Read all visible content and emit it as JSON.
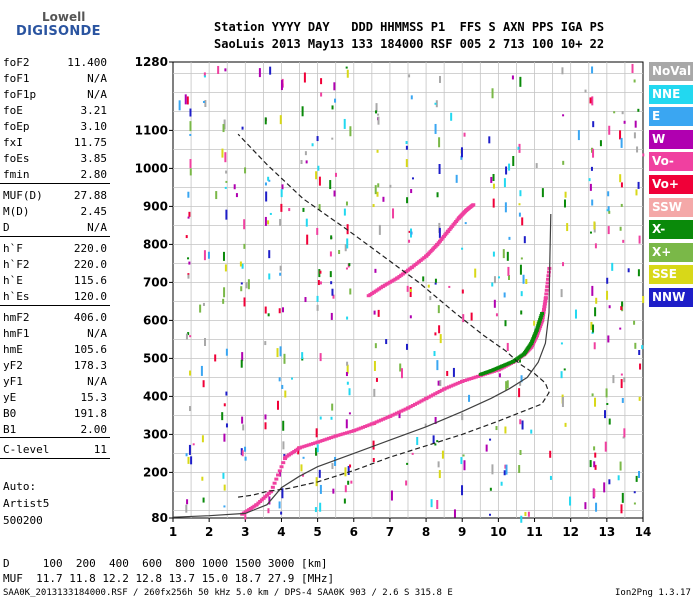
{
  "logo": {
    "line1": "Lowell",
    "line2": "DIGISONDE"
  },
  "header": {
    "row1": "Station YYYY DAY   DDD HHMMSS P1  FFS S AXN PPS IGA PS",
    "row2": "SaoLuis 2013 May13 133 184000 RSF 005 2 713 100 10+ 22"
  },
  "params": [
    {
      "key": "foF2",
      "value": "11.400"
    },
    {
      "key": "foF1",
      "value": "N/A"
    },
    {
      "key": "foF1p",
      "value": "N/A"
    },
    {
      "key": "foE",
      "value": "3.21"
    },
    {
      "key": "foEp",
      "value": "3.10"
    },
    {
      "key": "fxI",
      "value": "11.75"
    },
    {
      "key": "foEs",
      "value": "3.85"
    },
    {
      "key": "fmin",
      "value": "2.80"
    },
    {
      "key": "MUF(D)",
      "value": "27.88"
    },
    {
      "key": "M(D)",
      "value": "2.45"
    },
    {
      "key": "D",
      "value": "N/A"
    },
    {
      "key": "h`F",
      "value": "220.0"
    },
    {
      "key": "h`F2",
      "value": "220.0"
    },
    {
      "key": "h`E",
      "value": "115.6"
    },
    {
      "key": "h`Es",
      "value": "120.0"
    },
    {
      "key": "hmF2",
      "value": "406.0"
    },
    {
      "key": "hmF1",
      "value": "N/A"
    },
    {
      "key": "hmE",
      "value": "105.6"
    },
    {
      "key": "yF2",
      "value": "178.3"
    },
    {
      "key": "yF1",
      "value": "N/A"
    },
    {
      "key": "yE",
      "value": "15.3"
    },
    {
      "key": "B0",
      "value": "191.8"
    },
    {
      "key": "B1",
      "value": "2.00"
    },
    {
      "key": "C-level",
      "value": "11"
    }
  ],
  "notes": {
    "auto": "Auto:",
    "artist": "Artist5",
    "version": "500200"
  },
  "footer": {
    "row1": "D     100  200  400  600  800 1000 1500 3000 [km]",
    "row2": "MUF  11.7 11.8 12.2 12.8 13.7 15.0 18.7 27.9 [MHz]",
    "row3": "SAA0K_2013133184000.RSF / 260fx256h 50 kHz 5.0 km / DPS-4 SAA0K 903 / 2.6 S 315.8 E",
    "version": "Ion2Png 1.3.17"
  },
  "legend": [
    {
      "label": "NoVal",
      "color": "#a8a8a8"
    },
    {
      "label": "NNE",
      "color": "#22d8f0"
    },
    {
      "label": "E",
      "color": "#3aa6f2"
    },
    {
      "label": "W",
      "color": "#b000b0"
    },
    {
      "label": "Vo-",
      "color": "#f040a0"
    },
    {
      "label": "Vo+",
      "color": "#f00038"
    },
    {
      "label": "SSW",
      "color": "#f4a8a8"
    },
    {
      "label": "X-",
      "color": "#0a8a0a"
    },
    {
      "label": "X+",
      "color": "#7ab848"
    },
    {
      "label": "SSE",
      "color": "#d8d818"
    },
    {
      "label": "NNW",
      "color": "#1e1ec8"
    }
  ],
  "chart_data": {
    "type": "scatter",
    "xlim": [
      1,
      14
    ],
    "ylim": [
      80,
      1280
    ],
    "x_ticks": [
      1,
      2,
      3,
      4,
      5,
      6,
      7,
      8,
      9,
      10,
      11,
      12,
      13,
      14
    ],
    "y_ticks": [
      80,
      200,
      300,
      400,
      500,
      600,
      700,
      800,
      900,
      1000,
      1100,
      1280
    ],
    "grid": true,
    "legend_position": "right",
    "series": [
      {
        "name": "Vo-",
        "color": "#f040a0",
        "x": [
          2.9,
          3.3,
          3.7,
          4.1,
          4.5,
          5.0,
          5.5,
          6.0,
          6.5,
          7.0,
          7.5,
          8.0,
          8.5,
          9.0,
          9.5,
          10.0,
          10.4,
          10.7,
          10.9,
          11.05,
          11.2,
          11.3,
          11.4
        ],
        "y": [
          90,
          115,
          150,
          240,
          265,
          280,
          296,
          310,
          328,
          348,
          370,
          395,
          420,
          440,
          455,
          470,
          490,
          510,
          530,
          560,
          600,
          660,
          740
        ]
      },
      {
        "name": "X-",
        "color": "#0a8a0a",
        "x": [
          9.5,
          9.8,
          10.1,
          10.4,
          10.7,
          10.9,
          11.05,
          11.2
        ],
        "y": [
          458,
          468,
          480,
          492,
          512,
          540,
          575,
          620
        ]
      },
      {
        "name": "Vo-",
        "color": "#f040a0",
        "x": [
          6.4,
          6.8,
          7.2,
          7.6,
          8.0,
          8.3,
          8.6,
          8.9,
          9.1,
          9.3
        ],
        "y": [
          665,
          690,
          712,
          740,
          770,
          800,
          835,
          870,
          890,
          905
        ]
      },
      {
        "name": "NoVal",
        "color": "#404040",
        "x": [
          1.0,
          2.0,
          3.0,
          3.6,
          4.0,
          4.5,
          5.0,
          6.0,
          7.0,
          8.0,
          9.0,
          9.8,
          10.3,
          10.8,
          11.1,
          11.3,
          11.4,
          11.42,
          11.45
        ],
        "y": [
          82,
          86,
          92,
          115,
          160,
          190,
          215,
          250,
          285,
          320,
          360,
          395,
          420,
          450,
          490,
          540,
          620,
          740,
          880
        ]
      },
      {
        "name": "NoVal",
        "color": "#202020",
        "x": [
          2.8,
          3.2,
          3.6,
          4.2,
          5.0,
          6.0,
          7.0,
          8.0,
          9.0,
          10.0,
          10.8,
          11.2,
          11.4,
          11.3,
          11.0,
          10.6,
          10.2,
          9.6,
          8.8,
          7.8,
          6.8,
          5.8,
          4.6,
          3.6,
          2.8
        ],
        "y": [
          135,
          140,
          150,
          158,
          175,
          205,
          240,
          270,
          300,
          335,
          365,
          380,
          410,
          435,
          460,
          485,
          520,
          560,
          620,
          700,
          770,
          840,
          920,
          1010,
          1090
        ]
      }
    ]
  }
}
